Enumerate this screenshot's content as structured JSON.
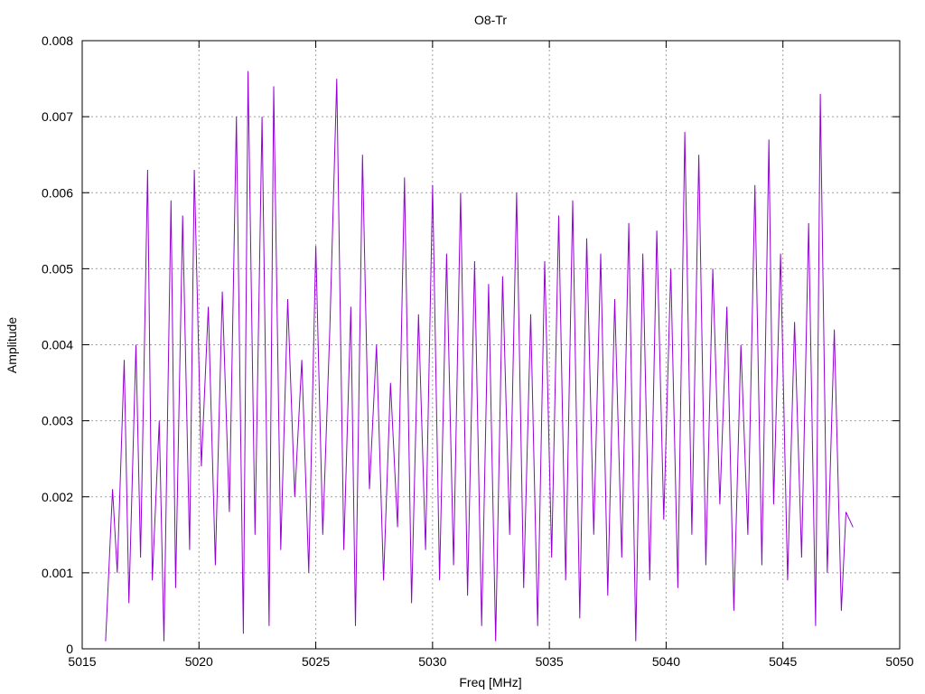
{
  "chart_data": {
    "type": "line",
    "title": "O8-Tr",
    "xlabel": "Freq [MHz]",
    "ylabel": "Amplitude",
    "xlim": [
      5015,
      5050
    ],
    "ylim": [
      0,
      0.008
    ],
    "x_ticks": [
      {
        "value": 5015,
        "label": "5015"
      },
      {
        "value": 5020,
        "label": "5020"
      },
      {
        "value": 5025,
        "label": "5025"
      },
      {
        "value": 5030,
        "label": "5030"
      },
      {
        "value": 5035,
        "label": "5035"
      },
      {
        "value": 5040,
        "label": "5040"
      },
      {
        "value": 5045,
        "label": "5045"
      },
      {
        "value": 5050,
        "label": "5050"
      }
    ],
    "y_ticks": [
      {
        "value": 0,
        "label": "0"
      },
      {
        "value": 0.001,
        "label": "0.001"
      },
      {
        "value": 0.002,
        "label": "0.002"
      },
      {
        "value": 0.003,
        "label": "0.003"
      },
      {
        "value": 0.004,
        "label": "0.004"
      },
      {
        "value": 0.005,
        "label": "0.005"
      },
      {
        "value": 0.006,
        "label": "0.006"
      },
      {
        "value": 0.007,
        "label": "0.007"
      },
      {
        "value": 0.008,
        "label": "0.008"
      }
    ],
    "grid": true,
    "legend": "none",
    "series": [
      {
        "color": "#9400d3",
        "x": [
          5016.0,
          5016.3,
          5016.5,
          5016.8,
          5017.0,
          5017.3,
          5017.5,
          5017.8,
          5018.0,
          5018.3,
          5018.5,
          5018.8,
          5019.0,
          5019.3,
          5019.6,
          5019.8,
          5020.1,
          5020.4,
          5020.7,
          5021.0,
          5021.3,
          5021.6,
          5021.9,
          5022.1,
          5022.4,
          5022.7,
          5023.0,
          5023.2,
          5023.5,
          5023.8,
          5024.1,
          5024.4,
          5024.7,
          5025.0,
          5025.3,
          5025.6,
          5025.9,
          5026.2,
          5026.5,
          5026.7,
          5027.0,
          5027.3,
          5027.6,
          5027.9,
          5028.2,
          5028.5,
          5028.8,
          5029.1,
          5029.4,
          5029.7,
          5030.0,
          5030.3,
          5030.6,
          5030.9,
          5031.2,
          5031.5,
          5031.8,
          5032.1,
          5032.4,
          5032.7,
          5033.0,
          5033.3,
          5033.6,
          5033.9,
          5034.2,
          5034.5,
          5034.8,
          5035.1,
          5035.4,
          5035.7,
          5036.0,
          5036.3,
          5036.6,
          5036.9,
          5037.2,
          5037.5,
          5037.8,
          5038.1,
          5038.4,
          5038.7,
          5039.0,
          5039.3,
          5039.6,
          5039.9,
          5040.2,
          5040.5,
          5040.8,
          5041.1,
          5041.4,
          5041.7,
          5042.0,
          5042.3,
          5042.6,
          5042.9,
          5043.2,
          5043.5,
          5043.8,
          5044.1,
          5044.4,
          5044.6,
          5044.9,
          5045.2,
          5045.5,
          5045.8,
          5046.1,
          5046.4,
          5046.6,
          5046.9,
          5047.2,
          5047.5,
          5047.7,
          5048.0
        ],
        "y": [
          0.0001,
          0.0021,
          0.001,
          0.0038,
          0.0006,
          0.004,
          0.0012,
          0.0063,
          0.0009,
          0.003,
          0.0001,
          0.0059,
          0.0008,
          0.0057,
          0.0013,
          0.0063,
          0.0024,
          0.0045,
          0.0011,
          0.0047,
          0.0018,
          0.007,
          0.0002,
          0.0076,
          0.0015,
          0.007,
          0.0003,
          0.0074,
          0.0013,
          0.0046,
          0.002,
          0.0038,
          0.001,
          0.0053,
          0.0015,
          0.0042,
          0.0075,
          0.0013,
          0.0045,
          0.0003,
          0.0065,
          0.0021,
          0.004,
          0.0009,
          0.0035,
          0.0016,
          0.0062,
          0.0006,
          0.0044,
          0.0013,
          0.0061,
          0.0009,
          0.0052,
          0.0011,
          0.006,
          0.0007,
          0.0051,
          0.0003,
          0.0048,
          0.0001,
          0.0049,
          0.0015,
          0.006,
          0.0008,
          0.0044,
          0.0003,
          0.0051,
          0.0012,
          0.0057,
          0.0009,
          0.0059,
          0.0004,
          0.0054,
          0.0015,
          0.0052,
          0.0007,
          0.0046,
          0.0012,
          0.0056,
          0.0001,
          0.0052,
          0.0009,
          0.0055,
          0.0017,
          0.005,
          0.0008,
          0.0068,
          0.0015,
          0.0065,
          0.0011,
          0.005,
          0.0019,
          0.0045,
          0.0005,
          0.004,
          0.0015,
          0.0061,
          0.0011,
          0.0067,
          0.0019,
          0.0052,
          0.0009,
          0.0043,
          0.0012,
          0.0056,
          0.0003,
          0.0073,
          0.001,
          0.0042,
          0.0005,
          0.0018,
          0.0016
        ]
      }
    ]
  }
}
